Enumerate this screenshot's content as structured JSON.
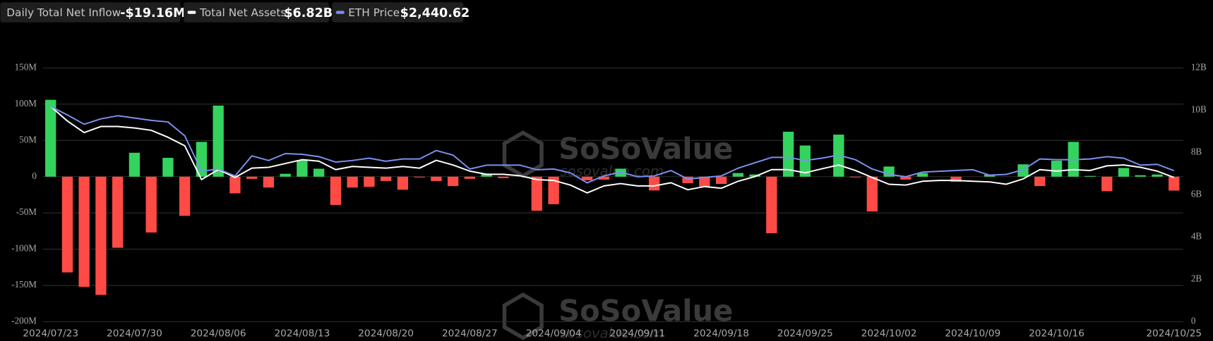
{
  "chart_data": {
    "type": "bar",
    "legend_values": [
      "-$19.16M",
      "$6.82B",
      "$2,440.62"
    ],
    "watermark": "SoSoValue",
    "watermark_url": "sosovalue.com",
    "categories": [
      "2024/07/23",
      null,
      null,
      null,
      null,
      "2024/07/30",
      null,
      null,
      null,
      null,
      "2024/08/06",
      null,
      null,
      null,
      null,
      "2024/08/13",
      null,
      null,
      null,
      null,
      "2024/08/20",
      null,
      null,
      null,
      null,
      "2024/08/27",
      null,
      null,
      null,
      null,
      "2024/09/04",
      null,
      null,
      null,
      null,
      "2024/09/11",
      null,
      null,
      null,
      null,
      "2024/09/18",
      null,
      null,
      null,
      null,
      "2024/09/25",
      null,
      null,
      null,
      null,
      "2024/10/02",
      null,
      null,
      null,
      null,
      "2024/10/09",
      null,
      null,
      null,
      null,
      "2024/10/16",
      null,
      null,
      null,
      null,
      null,
      null,
      "2024/10/25"
    ],
    "series": [
      {
        "name": "Daily Total Net Inflow",
        "type": "bar",
        "color": "#33d35e",
        "negative_color": "#ff4b45",
        "values": [
          106,
          -132,
          -152,
          -163,
          -98,
          33,
          -77,
          26,
          -54,
          48,
          98,
          -23,
          -3,
          -15,
          4,
          23,
          11,
          -39,
          -15,
          -14,
          -6,
          -18,
          -1,
          -6,
          -13,
          -3,
          4,
          -2,
          0,
          -47,
          -38,
          0,
          -5,
          -4,
          11,
          0,
          -19,
          0,
          -9,
          -14,
          -10,
          5,
          3,
          -78,
          62,
          43,
          0,
          58,
          -1,
          -48,
          14,
          -4,
          5,
          0,
          -7,
          0,
          3,
          0,
          17,
          -13,
          22,
          48,
          1,
          -20,
          12,
          2,
          3,
          -19.16
        ]
      },
      {
        "name": "Total Net Assets",
        "type": "line",
        "axis": "y2",
        "color": "#ffffff",
        "values": [
          10.18,
          9.49,
          8.94,
          9.23,
          9.23,
          9.16,
          9.05,
          8.72,
          8.32,
          6.72,
          7.19,
          6.82,
          7.26,
          7.3,
          7.48,
          7.66,
          7.59,
          7.19,
          7.34,
          7.3,
          7.26,
          7.34,
          7.26,
          7.63,
          7.41,
          7.12,
          6.97,
          6.97,
          6.9,
          6.72,
          6.68,
          6.46,
          6.09,
          6.42,
          6.53,
          6.42,
          6.42,
          6.57,
          6.24,
          6.39,
          6.31,
          6.64,
          6.86,
          7.19,
          7.19,
          7.04,
          7.23,
          7.41,
          7.15,
          6.82,
          6.5,
          6.46,
          6.64,
          6.68,
          6.68,
          6.64,
          6.61,
          6.5,
          6.75,
          7.19,
          7.12,
          7.19,
          7.15,
          7.37,
          7.41,
          7.3,
          7.12,
          6.82
        ]
      },
      {
        "name": "ETH Price",
        "type": "line",
        "axis": "y3",
        "color": "#7b8ff0",
        "values": [
          3477,
          3340,
          3190,
          3277,
          3327,
          3290,
          3252,
          3227,
          3003,
          2430,
          2467,
          2355,
          2679,
          2604,
          2716,
          2704,
          2666,
          2579,
          2604,
          2642,
          2592,
          2629,
          2629,
          2766,
          2691,
          2467,
          2529,
          2529,
          2529,
          2455,
          2467,
          2405,
          2243,
          2355,
          2417,
          2342,
          2355,
          2442,
          2305,
          2330,
          2355,
          2480,
          2567,
          2654,
          2654,
          2604,
          2642,
          2691,
          2617,
          2467,
          2380,
          2342,
          2417,
          2430,
          2442,
          2455,
          2367,
          2380,
          2455,
          2629,
          2617,
          2617,
          2629,
          2666,
          2642,
          2529,
          2542,
          2440.62
        ]
      }
    ],
    "ylim": [
      -200,
      150
    ],
    "yticks": [
      {
        "value": -200,
        "label": "-200M"
      },
      {
        "value": -150,
        "label": "-150M"
      },
      {
        "value": -100,
        "label": "-100M"
      },
      {
        "value": -50,
        "label": "-50M"
      },
      0,
      {
        "value": 50,
        "label": "50M"
      },
      {
        "value": 100,
        "label": "100M"
      },
      {
        "value": 150,
        "label": "150M"
      }
    ],
    "y2lim": [
      0,
      12
    ],
    "y2ticks": [
      0,
      {
        "value": 2,
        "label": "2B"
      },
      {
        "value": 4,
        "label": "4B"
      },
      {
        "value": 6,
        "label": "6B"
      },
      {
        "value": 8,
        "label": "8B"
      },
      {
        "value": 10,
        "label": "10B"
      },
      {
        "value": 12,
        "label": "12B"
      }
    ],
    "y3lim": [
      0,
      4100
    ],
    "grid": true
  }
}
